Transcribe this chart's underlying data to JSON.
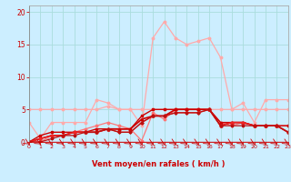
{
  "bg_color": "#cceeff",
  "grid_color": "#aadddd",
  "xlabel": "Vent moyen/en rafales ( km/h )",
  "xlabel_color": "#cc0000",
  "tick_color": "#cc0000",
  "xlim": [
    0,
    23
  ],
  "ylim": [
    0,
    21
  ],
  "yticks": [
    0,
    5,
    10,
    15,
    20
  ],
  "xticks": [
    0,
    1,
    2,
    3,
    4,
    5,
    6,
    7,
    8,
    9,
    10,
    11,
    12,
    13,
    14,
    15,
    16,
    17,
    18,
    19,
    20,
    21,
    22,
    23
  ],
  "series": [
    {
      "color": "#ffaaaa",
      "lw": 0.9,
      "marker": "o",
      "ms": 1.8,
      "y": [
        3,
        0.5,
        3,
        3,
        3,
        3,
        6.5,
        6,
        5,
        5,
        2.5,
        16,
        18.5,
        16,
        15,
        15.5,
        16,
        13,
        5,
        6,
        3,
        6.5,
        6.5,
        6.5
      ]
    },
    {
      "color": "#ffaaaa",
      "lw": 0.9,
      "marker": "o",
      "ms": 1.8,
      "y": [
        5,
        5,
        5,
        5,
        5,
        5,
        5,
        5.5,
        5,
        5,
        5,
        5,
        5,
        5,
        5,
        5,
        5,
        5,
        5,
        5,
        5,
        5,
        5,
        5
      ]
    },
    {
      "color": "#ff7777",
      "lw": 0.9,
      "marker": "o",
      "ms": 1.8,
      "y": [
        0,
        0,
        1,
        1,
        1.5,
        2,
        2.5,
        3,
        2.5,
        2,
        0.2,
        4.5,
        3.5,
        5,
        5,
        5,
        5,
        3,
        2.5,
        3,
        2.5,
        2.5,
        2.5,
        2.5
      ]
    },
    {
      "color": "#cc0000",
      "lw": 1.0,
      "marker": "s",
      "ms": 1.8,
      "y": [
        0,
        1,
        1.5,
        1.5,
        1.5,
        1.5,
        2,
        2,
        2,
        2,
        4,
        5,
        5,
        5,
        5,
        5,
        5,
        3,
        3,
        3,
        2.5,
        2.5,
        2.5,
        2.5
      ]
    },
    {
      "color": "#cc0000",
      "lw": 1.2,
      "marker": "^",
      "ms": 2.0,
      "y": [
        0,
        0.5,
        1,
        1,
        1.5,
        1.5,
        1.5,
        2,
        2,
        2,
        3.5,
        4,
        4,
        5,
        5,
        5,
        5,
        2.5,
        3,
        3,
        2.5,
        2.5,
        2.5,
        1.5
      ]
    },
    {
      "color": "#ee2222",
      "lw": 0.9,
      "marker": "P",
      "ms": 2.0,
      "y": [
        0,
        0.5,
        1,
        1,
        1.5,
        1.5,
        1.5,
        2,
        1.5,
        1.5,
        3,
        4,
        4,
        4.5,
        4.5,
        4.5,
        5,
        2.5,
        3,
        3,
        2.5,
        2.5,
        2.5,
        1.5
      ]
    },
    {
      "color": "#bb1111",
      "lw": 0.9,
      "marker": "P",
      "ms": 1.8,
      "y": [
        0,
        0,
        0.5,
        1,
        1,
        1.5,
        1.5,
        2,
        1.5,
        1.5,
        3,
        4,
        4,
        4.5,
        4.5,
        4.5,
        5,
        2.5,
        2.5,
        2.5,
        2.5,
        2.5,
        2.5,
        1.5
      ]
    }
  ]
}
